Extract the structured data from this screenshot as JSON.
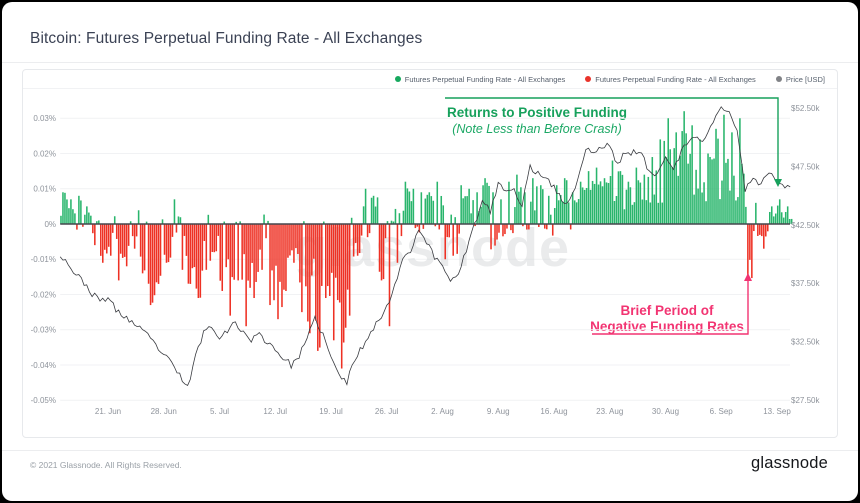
{
  "header": {
    "title": "Bitcoin: Futures Perpetual Funding Rate - All Exchanges"
  },
  "legend": {
    "items": [
      {
        "label": "Futures Perpetual Funding Rate - All Exchanges",
        "color": "#17a85e"
      },
      {
        "label": "Futures Perpetual Funding Rate - All Exchanges",
        "color": "#e9332a"
      },
      {
        "label": "Price [USD]",
        "color": "#808286"
      }
    ]
  },
  "watermark": {
    "text": "glassnode"
  },
  "annotations": {
    "positive": {
      "line1": "Returns to Positive Funding",
      "line2": "(Note Less than Before Crash)",
      "color": "#17a15c"
    },
    "negative": {
      "line1": "Brief Period of",
      "line2": "Negative Funding Rates",
      "color": "#f23472"
    }
  },
  "footer": {
    "copyright": "© 2021 Glassnode. All Rights Reserved.",
    "logo": "glassnode"
  },
  "colors": {
    "bar_positive": "#29b56c",
    "bar_negative": "#ee3124",
    "price_line": "#3a3c41",
    "grid": "#f1f2f4",
    "zero_line": "#45474d",
    "axis_text": "#8e939b",
    "watermark": "#d9dbdd"
  },
  "chart_data": {
    "type": "bar+line",
    "title": "Bitcoin: Futures Perpetual Funding Rate - All Exchanges",
    "grid": true,
    "legend_position": "top-right",
    "x_axis": {
      "start_date": "2021-06-15",
      "days": 92,
      "tick_labels": [
        "21. Jun",
        "28. Jun",
        "5. Jul",
        "12. Jul",
        "19. Jul",
        "26. Jul",
        "2. Aug",
        "9. Aug",
        "16. Aug",
        "23. Aug",
        "30. Aug",
        "6. Sep",
        "13. Sep"
      ]
    },
    "left_axis": {
      "title": "Funding rate (%)",
      "range_pct": [
        -0.05,
        0.035
      ],
      "tick_labels": [
        "0.03%",
        "0.02%",
        "0.01%",
        "0%",
        "-0.01%",
        "-0.02%",
        "-0.03%",
        "-0.04%",
        "-0.05%"
      ],
      "tick_values_pct": [
        0.03,
        0.02,
        0.01,
        0,
        -0.01,
        -0.02,
        -0.03,
        -0.04,
        -0.05
      ]
    },
    "right_axis": {
      "title": "Price [USD]",
      "range_usd_k": [
        27.5,
        55.0
      ],
      "tick_labels": [
        "$52.50k",
        "$47.50k",
        "$42.50k",
        "$37.50k",
        "$32.50k",
        "$27.50k"
      ],
      "tick_values_usd_k": [
        52.5,
        47.5,
        42.5,
        37.5,
        32.5,
        27.5
      ]
    },
    "series": [
      {
        "name": "Futures Perpetual Funding Rate - All Exchanges (positive)",
        "type": "bar",
        "color": "#29b56c"
      },
      {
        "name": "Futures Perpetual Funding Rate - All Exchanges (negative)",
        "type": "bar",
        "color": "#ee3124"
      },
      {
        "name": "Price [USD]",
        "type": "line",
        "color": "#3a3c41"
      }
    ],
    "funding_daily_envelope_milli_pct": [
      [
        0,
        9
      ],
      [
        0,
        7
      ],
      [
        -2,
        8
      ],
      [
        0,
        5
      ],
      [
        -6,
        2
      ],
      [
        -11,
        1
      ],
      [
        -9,
        4
      ],
      [
        -16,
        1
      ],
      [
        -12,
        2
      ],
      [
        -7,
        5
      ],
      [
        -14,
        1
      ],
      [
        -23,
        0
      ],
      [
        -17,
        2
      ],
      [
        -11,
        6
      ],
      [
        -5,
        7
      ],
      [
        -13,
        2
      ],
      [
        -17,
        1
      ],
      [
        -21,
        0
      ],
      [
        -13,
        3
      ],
      [
        -8,
        5
      ],
      [
        -19,
        1
      ],
      [
        -26,
        0
      ],
      [
        -16,
        2
      ],
      [
        -29,
        0
      ],
      [
        -21,
        1
      ],
      [
        -13,
        4
      ],
      [
        -23,
        1
      ],
      [
        -27,
        0
      ],
      [
        -19,
        2
      ],
      [
        -11,
        4
      ],
      [
        -25,
        1
      ],
      [
        -31,
        0
      ],
      [
        -36,
        0
      ],
      [
        -21,
        2
      ],
      [
        -33,
        0
      ],
      [
        -41,
        0
      ],
      [
        -26,
        2
      ],
      [
        -9,
        8
      ],
      [
        -4,
        10
      ],
      [
        0,
        8
      ],
      [
        -16,
        3
      ],
      [
        -29,
        1
      ],
      [
        -11,
        5
      ],
      [
        0,
        12
      ],
      [
        -2,
        10
      ],
      [
        -5,
        9
      ],
      [
        0,
        9
      ],
      [
        -2,
        12
      ],
      [
        -10,
        8
      ],
      [
        -9,
        6
      ],
      [
        -4,
        11
      ],
      [
        0,
        10
      ],
      [
        -2,
        9
      ],
      [
        0,
        13
      ],
      [
        -8,
        9
      ],
      [
        -5,
        7
      ],
      [
        -3,
        12
      ],
      [
        0,
        14
      ],
      [
        -2,
        9
      ],
      [
        0,
        13
      ],
      [
        -2,
        11
      ],
      [
        -4,
        8
      ],
      [
        0,
        11
      ],
      [
        0,
        13
      ],
      [
        -2,
        9
      ],
      [
        0,
        12
      ],
      [
        0,
        15
      ],
      [
        0,
        16
      ],
      [
        0,
        13
      ],
      [
        0,
        18
      ],
      [
        0,
        15
      ],
      [
        0,
        12
      ],
      [
        0,
        16
      ],
      [
        0,
        14
      ],
      [
        0,
        19
      ],
      [
        0,
        24
      ],
      [
        0,
        30
      ],
      [
        0,
        26
      ],
      [
        0,
        32
      ],
      [
        0,
        28
      ],
      [
        0,
        24
      ],
      [
        0,
        20
      ],
      [
        0,
        27
      ],
      [
        0,
        31
      ],
      [
        0,
        26
      ],
      [
        0,
        30
      ],
      [
        -15.5,
        8
      ],
      [
        -4,
        6
      ],
      [
        -7,
        4
      ],
      [
        0,
        5
      ],
      [
        0,
        7
      ],
      [
        0,
        5
      ]
    ],
    "price_daily_usd_k": [
      40.0,
      39.2,
      38.2,
      37.6,
      36.6,
      36.0,
      36.3,
      35.2,
      34.7,
      34.2,
      33.6,
      33.0,
      32.2,
      31.4,
      30.6,
      29.6,
      28.6,
      31.2,
      33.4,
      33.8,
      33.0,
      33.5,
      34.1,
      33.3,
      32.7,
      33.1,
      32.5,
      31.9,
      31.1,
      30.5,
      31.3,
      32.7,
      34.5,
      33.1,
      31.1,
      29.7,
      29.0,
      31.1,
      32.1,
      33.5,
      34.3,
      35.4,
      37.4,
      39.6,
      40.4,
      42.1,
      41.1,
      39.7,
      39.1,
      37.7,
      38.5,
      40.3,
      42.5,
      44.4,
      43.7,
      46.0,
      45.4,
      45.4,
      44.3,
      47.4,
      46.9,
      46.7,
      45.7,
      44.6,
      44.5,
      46.5,
      49.0,
      48.7,
      49.1,
      49.4,
      47.6,
      48.8,
      48.7,
      48.6,
      46.9,
      47.0,
      48.6,
      47.1,
      48.8,
      49.7,
      49.9,
      49.8,
      51.5,
      52.6,
      52.2,
      50.4,
      45.6,
      46.6,
      46.0,
      47.1,
      46.3,
      45.9
    ]
  }
}
